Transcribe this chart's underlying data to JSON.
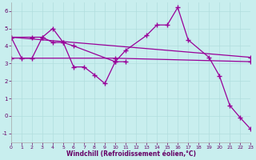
{
  "xlabel": "Windchill (Refroidissement éolien,°C)",
  "bg_color": "#c8eeee",
  "grid_color": "#b0dddd",
  "line_color": "#990099",
  "xlim": [
    0,
    23
  ],
  "ylim": [
    -1.5,
    6.5
  ],
  "xticks": [
    0,
    1,
    2,
    3,
    4,
    5,
    6,
    7,
    8,
    9,
    10,
    11,
    12,
    13,
    14,
    15,
    16,
    17,
    18,
    19,
    20,
    21,
    22,
    23
  ],
  "yticks": [
    -1,
    0,
    1,
    2,
    3,
    4,
    5,
    6
  ],
  "lines": [
    {
      "x": [
        0,
        1,
        2,
        3,
        4,
        5,
        6,
        7,
        8,
        9,
        10,
        11
      ],
      "y": [
        4.5,
        3.3,
        3.3,
        4.5,
        5.0,
        4.2,
        2.8,
        2.8,
        2.35,
        1.85,
        3.1,
        3.1
      ]
    },
    {
      "x": [
        0,
        2,
        3,
        4,
        5,
        6,
        10,
        11,
        13,
        14,
        15,
        16,
        17,
        19,
        20,
        21,
        22,
        23
      ],
      "y": [
        4.5,
        4.5,
        4.5,
        4.2,
        4.2,
        4.0,
        3.1,
        3.75,
        4.6,
        5.2,
        5.2,
        6.2,
        4.35,
        3.35,
        2.3,
        0.6,
        -0.1,
        -0.75
      ]
    },
    {
      "x": [
        0,
        23
      ],
      "y": [
        4.5,
        3.35
      ]
    },
    {
      "x": [
        0,
        10,
        23
      ],
      "y": [
        3.3,
        3.3,
        3.1
      ]
    }
  ]
}
